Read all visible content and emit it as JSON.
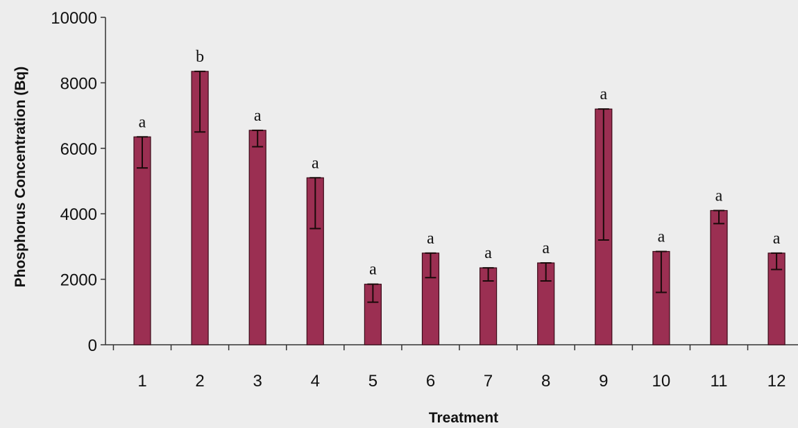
{
  "chart_data": {
    "type": "bar",
    "xlabel": "Treatment",
    "ylabel": "Phosphorus Concentration (Bq)",
    "ylim": [
      0,
      10000
    ],
    "yticks": [
      "0",
      "2000",
      "4000",
      "6000",
      "8000",
      "10000"
    ],
    "categories": [
      "1",
      "2",
      "3",
      "4",
      "5",
      "6",
      "7",
      "8",
      "9",
      "10",
      "11",
      "12"
    ],
    "values": [
      6350,
      8350,
      6550,
      5100,
      1850,
      2800,
      2350,
      2500,
      7200,
      2850,
      4100,
      2800
    ],
    "error_low": [
      5400,
      6500,
      6050,
      3550,
      1300,
      2050,
      1950,
      1950,
      3200,
      1600,
      3700,
      2300
    ],
    "error_high": [
      6350,
      8350,
      6550,
      5100,
      1850,
      2800,
      2350,
      2500,
      7200,
      2850,
      4100,
      2800
    ],
    "significance": [
      "a",
      "b",
      "a",
      "a",
      "a",
      "a",
      "a",
      "a",
      "a",
      "a",
      "a",
      "a"
    ],
    "bar_color": "#9b2f52",
    "grid": false
  }
}
